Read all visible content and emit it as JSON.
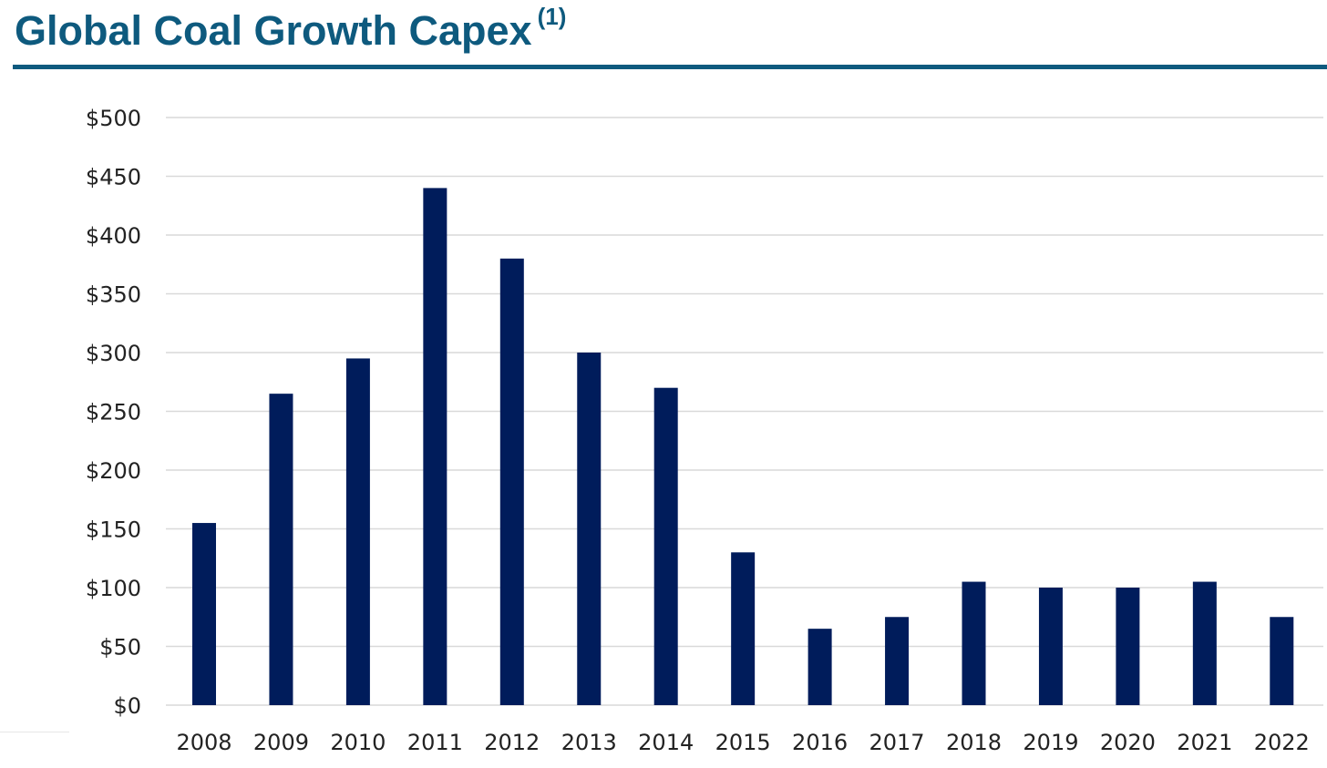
{
  "title": {
    "text": "Global Coal Growth Capex",
    "footnote": "(1)"
  },
  "colors": {
    "title": "#0e5a7e",
    "bar": "#001c5b",
    "grid": "#d9d9d9"
  },
  "chart_data": {
    "type": "bar",
    "title": "Global Coal Growth Capex (1)",
    "xlabel": "",
    "ylabel": "",
    "categories": [
      "2008",
      "2009",
      "2010",
      "2011",
      "2012",
      "2013",
      "2014",
      "2015",
      "2016",
      "2017",
      "2018",
      "2019",
      "2020",
      "2021",
      "2022"
    ],
    "values": [
      155,
      265,
      295,
      440,
      380,
      300,
      270,
      130,
      65,
      75,
      105,
      100,
      100,
      105,
      75
    ],
    "ylim": [
      0,
      500
    ],
    "y_ticks": [
      0,
      50,
      100,
      150,
      200,
      250,
      300,
      350,
      400,
      450,
      500
    ],
    "y_tick_labels": [
      "$0",
      "$50",
      "$100",
      "$150",
      "$200",
      "$250",
      "$300",
      "$350",
      "$400",
      "$450",
      "$500"
    ],
    "grid": true,
    "legend": "none"
  }
}
